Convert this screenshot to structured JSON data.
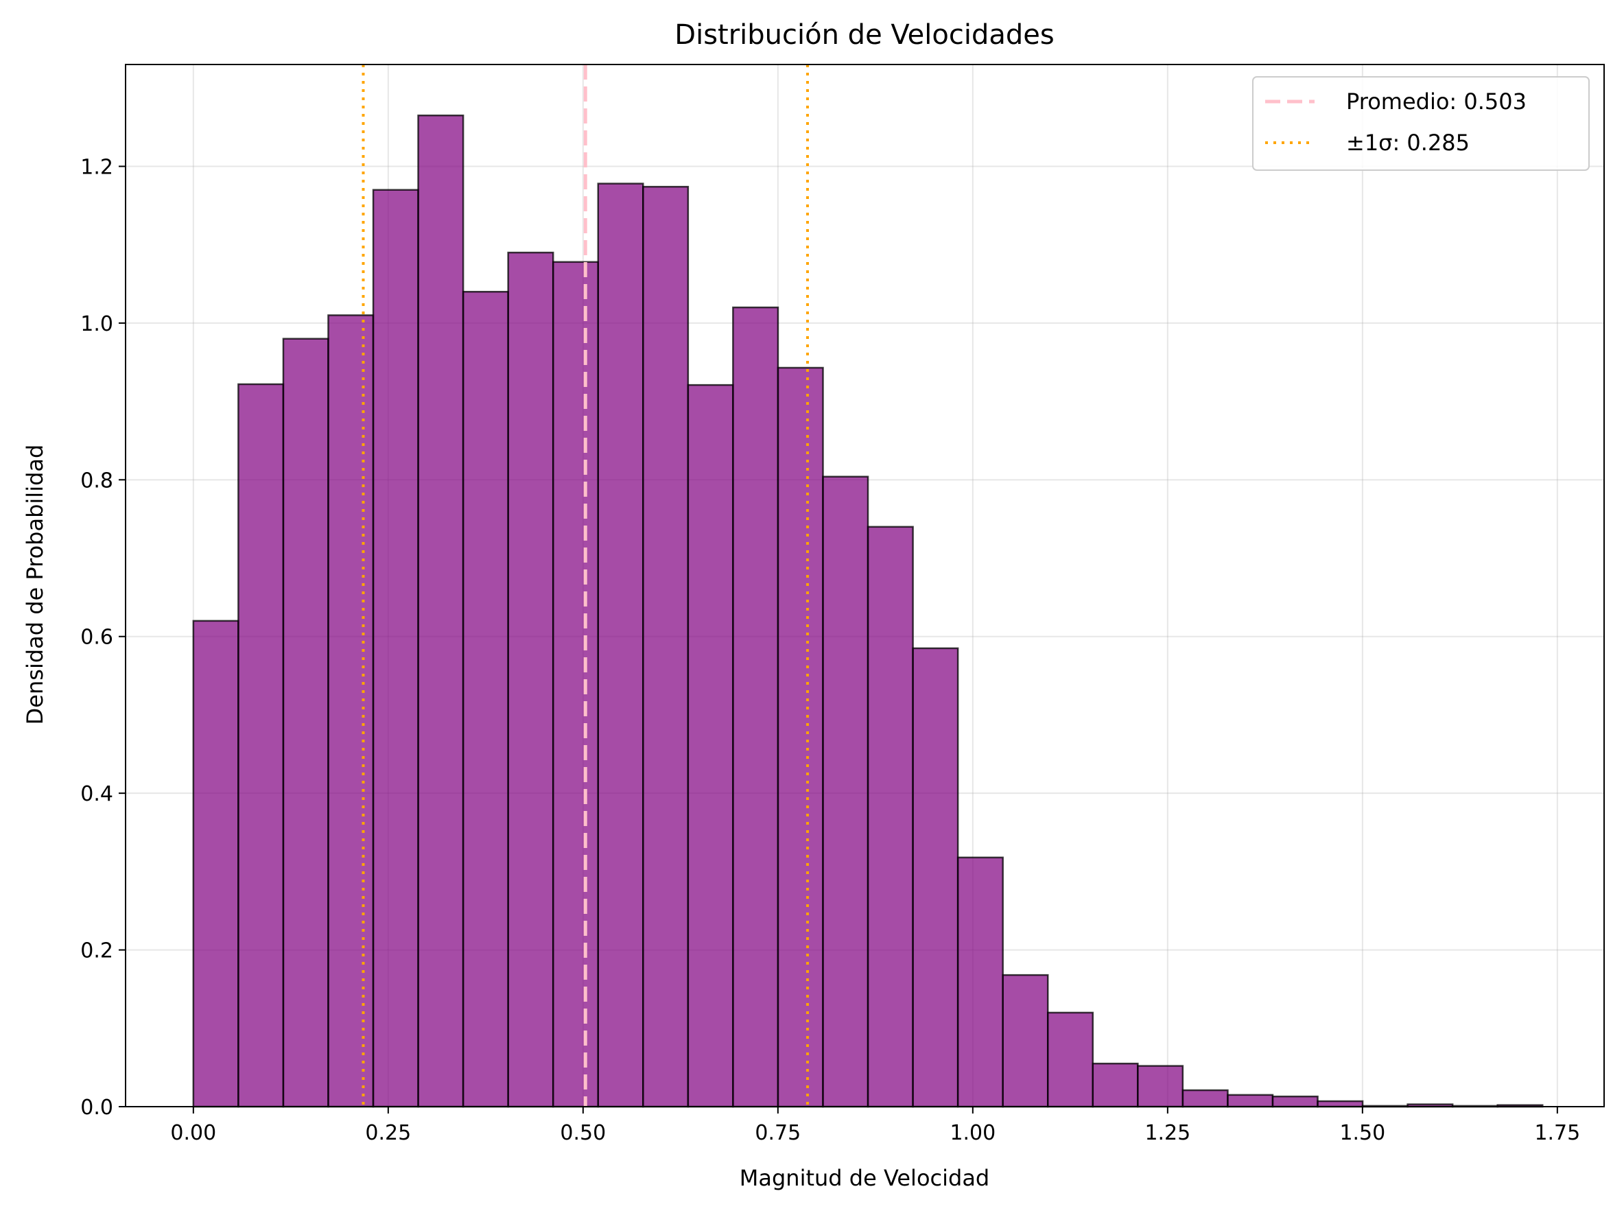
{
  "chart_data": {
    "type": "bar",
    "subtype": "histogram",
    "title": "Distribución de Velocidades",
    "xlabel": "Magnitud de Velocidad",
    "ylabel": "Densidad de Probabilidad",
    "xlim": [
      -0.087,
      1.81
    ],
    "ylim": [
      0,
      1.33
    ],
    "xticks": [
      "0.00",
      "0.25",
      "0.50",
      "0.75",
      "1.00",
      "1.25",
      "1.50",
      "1.75"
    ],
    "xtick_values": [
      0,
      0.25,
      0.5,
      0.75,
      1.0,
      1.25,
      1.5,
      1.75
    ],
    "yticks": [
      "0.0",
      "0.2",
      "0.4",
      "0.6",
      "0.8",
      "1.0",
      "1.2"
    ],
    "ytick_values": [
      0,
      0.2,
      0.4,
      0.6,
      0.8,
      1.0,
      1.2
    ],
    "grid": true,
    "bin_start": 0.0,
    "bin_width": 0.0577,
    "values": [
      0.62,
      0.922,
      0.98,
      1.01,
      1.17,
      1.265,
      1.04,
      1.09,
      1.078,
      1.178,
      1.174,
      0.921,
      1.02,
      0.943,
      0.804,
      0.74,
      0.585,
      0.318,
      0.168,
      0.12,
      0.055,
      0.052,
      0.021,
      0.015,
      0.013,
      0.007,
      0.001,
      0.003,
      0.001,
      0.002
    ],
    "bar_color": "#800080",
    "bar_alpha": 0.7,
    "edge_color": "#000000",
    "mean": 0.503,
    "std": 0.285,
    "mean_color": "#FFC0CB",
    "std_color": "#FFA500",
    "legend": {
      "placement": "top-right",
      "entries": [
        {
          "label": "Promedio: 0.503",
          "style": "dashed",
          "color": "#FFC0CB"
        },
        {
          "label": "±1σ: 0.285",
          "style": "dotted",
          "color": "#FFA500"
        }
      ]
    }
  }
}
